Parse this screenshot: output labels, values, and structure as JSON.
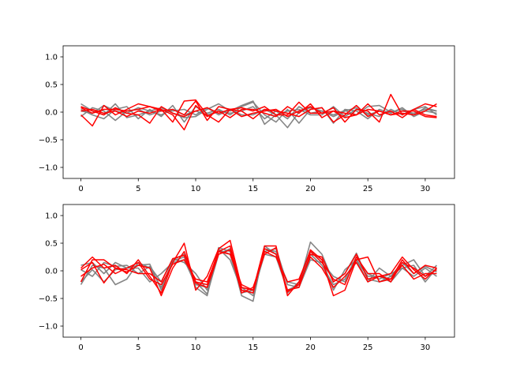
{
  "chart_data": [
    {
      "type": "line",
      "title": "",
      "xlabel": "",
      "ylabel": "",
      "xlim": [
        -1.55,
        32.55
      ],
      "ylim": [
        -1.2,
        1.2
      ],
      "xticks": [
        0,
        5,
        10,
        15,
        20,
        25,
        30
      ],
      "yticks": [
        -1.0,
        -0.5,
        0.0,
        0.5,
        1.0
      ],
      "grid": false,
      "legend": "none",
      "x": [
        0,
        1,
        2,
        3,
        4,
        5,
        6,
        7,
        8,
        9,
        10,
        11,
        12,
        13,
        14,
        15,
        16,
        17,
        18,
        19,
        20,
        21,
        22,
        23,
        24,
        25,
        26,
        27,
        28,
        29,
        30,
        31
      ],
      "series_colors": {
        "gray": "#808080",
        "red": "#ff0000"
      },
      "series": [
        {
          "color": "gray",
          "values": [
            0.15,
            0.02,
            -0.05,
            0.15,
            -0.1,
            -0.05,
            0.02,
            0.08,
            -0.02,
            -0.1,
            -0.08,
            0.05,
            0.15,
            0.02,
            0.12,
            0.2,
            -0.22,
            -0.05,
            -0.28,
            0.0,
            0.08,
            0.02,
            -0.05,
            0.03,
            -0.05,
            0.1,
            0.12,
            0.0,
            0.05,
            -0.05,
            0.08,
            0.02
          ]
        },
        {
          "color": "gray",
          "values": [
            0.05,
            -0.05,
            -0.12,
            0.05,
            0.1,
            -0.12,
            0.05,
            -0.08,
            0.12,
            -0.18,
            0.1,
            -0.02,
            0.05,
            -0.05,
            0.1,
            0.18,
            -0.05,
            -0.18,
            0.05,
            -0.2,
            0.05,
            0.08,
            -0.2,
            0.05,
            0.02,
            -0.12,
            0.05,
            -0.02,
            0.08,
            -0.08,
            0.02,
            -0.02
          ]
        },
        {
          "color": "gray",
          "values": [
            -0.08,
            0.08,
            0.02,
            -0.15,
            0.02,
            0.05,
            -0.05,
            0.02,
            0.02,
            0.05,
            -0.05,
            0.08,
            -0.05,
            0.05,
            -0.05,
            -0.05,
            0.05,
            -0.05,
            0.02,
            0.05,
            -0.05,
            -0.05,
            0.1,
            -0.08,
            0.05,
            -0.02,
            -0.08,
            0.05,
            -0.05,
            0.05,
            0.1,
            -0.05
          ]
        },
        {
          "color": "gray",
          "values": [
            0.02,
            -0.02,
            0.12,
            0.02,
            -0.02,
            0.08,
            0.02,
            -0.05,
            0.05,
            -0.05,
            0.02,
            -0.05,
            0.02,
            -0.02,
            0.02,
            0.1,
            -0.12,
            0.02,
            -0.12,
            0.1,
            -0.02,
            0.02,
            -0.08,
            0.02,
            0.08,
            -0.05,
            0.02,
            -0.05,
            0.02,
            -0.02,
            0.05,
            0.02
          ]
        },
        {
          "color": "red",
          "values": [
            0.08,
            -0.02,
            0.05,
            0.05,
            0.02,
            0.05,
            0.1,
            0.02,
            0.05,
            -0.05,
            0.2,
            -0.15,
            0.1,
            0.05,
            0.08,
            0.02,
            0.1,
            -0.05,
            -0.05,
            0.18,
            -0.02,
            -0.02,
            0.08,
            -0.18,
            0.05,
            0.02,
            -0.18,
            0.32,
            -0.05,
            0.05,
            0.15,
            0.1
          ]
        },
        {
          "color": "red",
          "values": [
            -0.05,
            -0.25,
            0.12,
            -0.05,
            0.05,
            0.15,
            0.1,
            0.05,
            -0.05,
            -0.32,
            0.12,
            -0.08,
            0.02,
            -0.1,
            0.05,
            0.05,
            -0.02,
            -0.08,
            0.1,
            -0.02,
            0.15,
            -0.1,
            0.02,
            -0.1,
            -0.05,
            0.15,
            -0.05,
            0.02,
            -0.1,
            0.05,
            -0.05,
            -0.08
          ]
        },
        {
          "color": "red",
          "values": [
            0.02,
            0.05,
            -0.02,
            0.02,
            -0.08,
            0.02,
            -0.02,
            0.05,
            -0.18,
            0.2,
            0.22,
            -0.05,
            -0.18,
            0.05,
            0.02,
            -0.12,
            0.05,
            0.02,
            -0.02,
            -0.08,
            0.05,
            0.08,
            -0.18,
            -0.05,
            0.12,
            -0.08,
            0.02,
            -0.05,
            0.02,
            0.02,
            -0.08,
            -0.1
          ]
        },
        {
          "color": "red",
          "values": [
            0.1,
            0.02,
            -0.05,
            0.08,
            -0.02,
            -0.05,
            -0.2,
            0.1,
            -0.02,
            -0.08,
            0.02,
            0.08,
            -0.02,
            0.05,
            -0.08,
            -0.02,
            0.02,
            0.05,
            -0.08,
            0.02,
            0.1,
            -0.02,
            0.02,
            -0.02,
            -0.05,
            0.05,
            0.02,
            -0.05,
            -0.02,
            -0.05,
            0.02,
            0.15
          ]
        }
      ]
    },
    {
      "type": "line",
      "title": "",
      "xlabel": "",
      "ylabel": "",
      "xlim": [
        -1.55,
        32.55
      ],
      "ylim": [
        -1.2,
        1.2
      ],
      "xticks": [
        0,
        5,
        10,
        15,
        20,
        25,
        30
      ],
      "yticks": [
        -1.0,
        -0.5,
        0.0,
        0.5,
        1.0
      ],
      "grid": false,
      "legend": "none",
      "x": [
        0,
        1,
        2,
        3,
        4,
        5,
        6,
        7,
        8,
        9,
        10,
        11,
        12,
        13,
        14,
        15,
        16,
        17,
        18,
        19,
        20,
        21,
        22,
        23,
        24,
        25,
        26,
        27,
        28,
        29,
        30,
        31
      ],
      "series_colors": {
        "gray": "#808080",
        "red": "#ff0000"
      },
      "series": [
        {
          "color": "gray",
          "values": [
            0.1,
            0.15,
            -0.05,
            0.15,
            0.05,
            0.1,
            0.12,
            -0.35,
            0.2,
            0.3,
            -0.3,
            -0.45,
            0.42,
            0.35,
            -0.45,
            -0.55,
            0.45,
            0.3,
            -0.2,
            -0.25,
            0.52,
            0.3,
            -0.2,
            -0.05,
            0.32,
            -0.15,
            -0.2,
            -0.1,
            0.1,
            0.2,
            -0.1,
            0.1
          ]
        },
        {
          "color": "gray",
          "values": [
            -0.25,
            0.1,
            0.05,
            -0.25,
            -0.15,
            0.15,
            0.05,
            -0.3,
            0.18,
            0.25,
            -0.2,
            -0.42,
            0.3,
            0.4,
            -0.3,
            -0.45,
            0.35,
            0.4,
            -0.25,
            -0.3,
            0.2,
            0.15,
            -0.1,
            -0.2,
            0.2,
            -0.1,
            -0.1,
            -0.2,
            0.05,
            0.1,
            -0.2,
            0.05
          ]
        },
        {
          "color": "gray",
          "values": [
            0.02,
            -0.1,
            0.15,
            0.08,
            0.1,
            -0.05,
            0.08,
            -0.2,
            0.22,
            0.15,
            -0.05,
            -0.35,
            0.38,
            0.3,
            -0.4,
            -0.35,
            0.4,
            0.35,
            -0.4,
            -0.2,
            0.35,
            0.2,
            -0.35,
            0.02,
            0.2,
            -0.2,
            0.05,
            -0.1,
            0.15,
            -0.05,
            0.08,
            -0.02
          ]
        },
        {
          "color": "gray",
          "values": [
            -0.2,
            0.02,
            -0.2,
            0.02,
            0.05,
            0.05,
            -0.2,
            -0.05,
            0.15,
            0.2,
            -0.25,
            -0.3,
            0.4,
            0.2,
            -0.35,
            -0.4,
            0.3,
            0.25,
            -0.35,
            -0.25,
            0.3,
            0.1,
            -0.25,
            -0.15,
            0.25,
            -0.05,
            -0.15,
            -0.05,
            0.05,
            -0.1,
            0.05,
            -0.1
          ]
        },
        {
          "color": "red",
          "values": [
            0.05,
            0.25,
            0.05,
            0.1,
            -0.05,
            0.2,
            -0.1,
            -0.4,
            0.15,
            0.5,
            -0.35,
            -0.1,
            0.4,
            0.55,
            -0.3,
            -0.35,
            0.45,
            0.45,
            -0.45,
            -0.2,
            0.38,
            0.2,
            -0.45,
            -0.35,
            0.2,
            0.25,
            -0.2,
            -0.15,
            0.2,
            -0.05,
            0.1,
            0.05
          ]
        },
        {
          "color": "red",
          "values": [
            -0.2,
            0.2,
            0.2,
            0.05,
            -0.02,
            0.1,
            0.05,
            -0.45,
            0.05,
            0.35,
            -0.2,
            -0.25,
            0.35,
            0.45,
            -0.35,
            -0.4,
            0.4,
            0.3,
            -0.35,
            -0.3,
            0.3,
            0.25,
            -0.2,
            -0.05,
            0.3,
            -0.15,
            -0.1,
            -0.05,
            0.25,
            0.02,
            -0.15,
            0.05
          ]
        },
        {
          "color": "red",
          "values": [
            0.02,
            0.15,
            -0.22,
            0.05,
            0.02,
            -0.05,
            -0.05,
            -0.2,
            0.22,
            0.28,
            -0.22,
            -0.3,
            0.3,
            0.38,
            -0.4,
            -0.3,
            0.3,
            0.42,
            -0.38,
            -0.25,
            0.25,
            0.05,
            -0.3,
            -0.1,
            0.15,
            -0.2,
            -0.1,
            -0.15,
            0.1,
            -0.15,
            -0.05,
            -0.05
          ]
        },
        {
          "color": "red",
          "values": [
            -0.1,
            0.05,
            0.12,
            -0.05,
            0.05,
            0.15,
            -0.15,
            -0.25,
            0.12,
            0.2,
            -0.15,
            -0.2,
            0.35,
            0.3,
            -0.25,
            -0.35,
            0.35,
            0.25,
            -0.2,
            -0.15,
            0.35,
            0.15,
            -0.15,
            -0.25,
            0.25,
            -0.05,
            -0.05,
            -0.2,
            0.15,
            0.05,
            -0.1,
            0.02
          ]
        }
      ]
    }
  ]
}
